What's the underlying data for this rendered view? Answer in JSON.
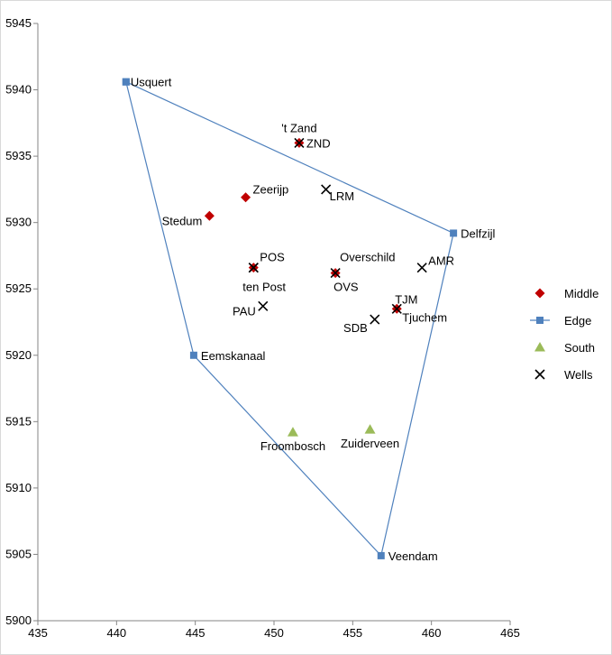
{
  "chart_data": {
    "type": "scatter",
    "title": "",
    "xlabel": "",
    "ylabel": "",
    "xlim": [
      435,
      465
    ],
    "ylim": [
      5900,
      5945
    ],
    "xticks": [
      435,
      440,
      445,
      450,
      455,
      460,
      465
    ],
    "yticks": [
      5900,
      5905,
      5910,
      5915,
      5920,
      5925,
      5930,
      5935,
      5940,
      5945
    ],
    "grid": false,
    "legend_position": "right",
    "series": [
      {
        "name": "Middle",
        "marker": "diamond",
        "color": "#c00000",
        "line": false,
        "points": [
          {
            "x": 451.6,
            "y": 5936.0,
            "label": "'t Zand"
          },
          {
            "x": 448.2,
            "y": 5931.9,
            "label": "Zeerijp"
          },
          {
            "x": 445.9,
            "y": 5930.5,
            "label": "Stedum"
          },
          {
            "x": 448.7,
            "y": 5926.6,
            "label": ""
          },
          {
            "x": 453.9,
            "y": 5926.2,
            "label": "Overschild"
          },
          {
            "x": 457.8,
            "y": 5923.5,
            "label": "Tjuchem"
          }
        ]
      },
      {
        "name": "Edge",
        "marker": "square",
        "color": "#4f81bd",
        "line": true,
        "points": [
          {
            "x": 440.6,
            "y": 5940.6,
            "label": "Usquert"
          },
          {
            "x": 461.4,
            "y": 5929.2,
            "label": "Delfzijl"
          },
          {
            "x": 456.8,
            "y": 5904.9,
            "label": "Veendam"
          },
          {
            "x": 444.9,
            "y": 5920.0,
            "label": "Eemskanaal"
          },
          {
            "x": 440.6,
            "y": 5940.6,
            "label": ""
          }
        ]
      },
      {
        "name": "South",
        "marker": "triangle",
        "color": "#9bbb59",
        "line": false,
        "points": [
          {
            "x": 451.2,
            "y": 5914.2,
            "label": "Froombosch"
          },
          {
            "x": 456.1,
            "y": 5914.4,
            "label": "Zuiderveen"
          }
        ]
      },
      {
        "name": "Wells",
        "marker": "x",
        "color": "#000000",
        "line": false,
        "points": [
          {
            "x": 451.6,
            "y": 5936.0,
            "label": "ZND"
          },
          {
            "x": 453.3,
            "y": 5932.5,
            "label": "LRM"
          },
          {
            "x": 448.7,
            "y": 5926.6,
            "label": "POS"
          },
          {
            "x": 453.9,
            "y": 5926.2,
            "label": "OVS"
          },
          {
            "x": 459.4,
            "y": 5926.6,
            "label": "AMR"
          },
          {
            "x": 457.8,
            "y": 5923.5,
            "label": "TJM"
          },
          {
            "x": 449.3,
            "y": 5923.7,
            "label": "PAU"
          },
          {
            "x": 456.4,
            "y": 5922.7,
            "label": "SDB"
          },
          {
            "x": 448.7,
            "y": 5926.6,
            "label": "ten Post"
          }
        ]
      }
    ]
  }
}
